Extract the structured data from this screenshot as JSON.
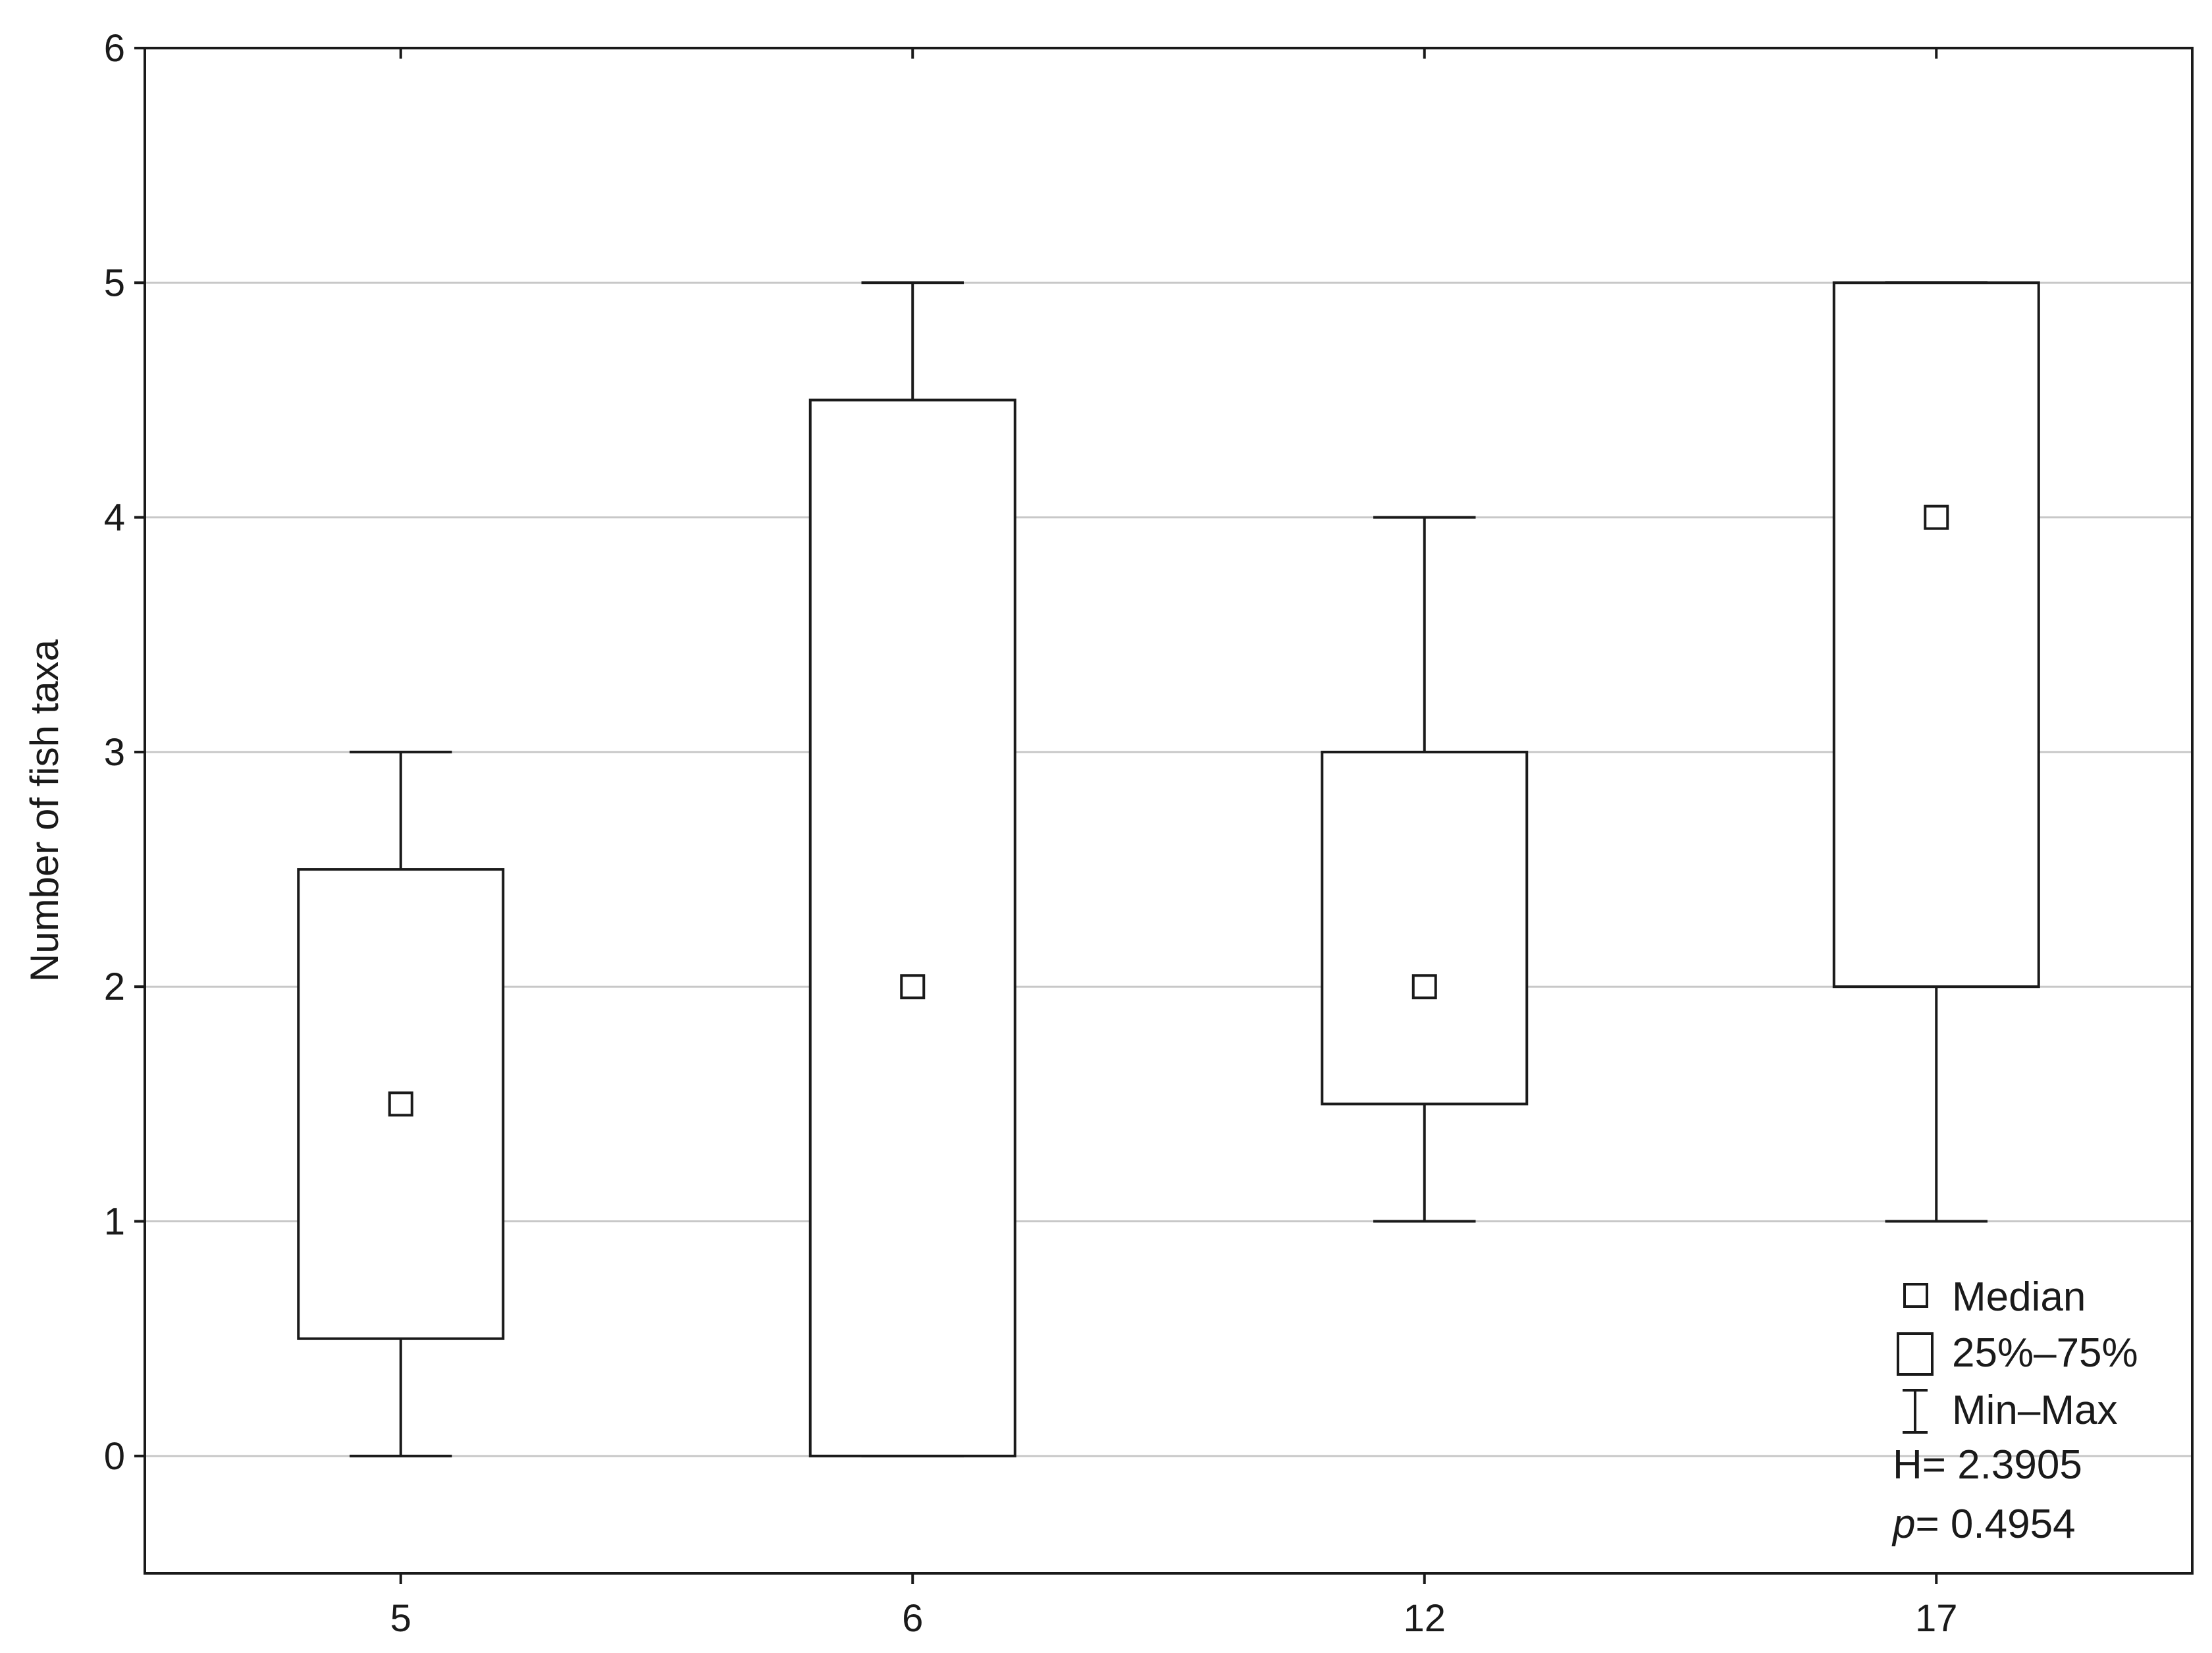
{
  "chart_data": {
    "type": "box",
    "ylabel": "Number of fish taxa",
    "xlabel": "",
    "ylim": [
      -0.5,
      6
    ],
    "yticks": [
      "0",
      "1",
      "2",
      "3",
      "4",
      "5",
      "6"
    ],
    "grid": "horizontal",
    "categories": [
      "5",
      "6",
      "12",
      "17"
    ],
    "boxes": [
      {
        "category": "5",
        "min": 0,
        "q1": 0.5,
        "median": 1.5,
        "q3": 2.5,
        "max": 3
      },
      {
        "category": "6",
        "min": 0,
        "q1": 0,
        "median": 2,
        "q3": 4.5,
        "max": 5
      },
      {
        "category": "12",
        "min": 1,
        "q1": 1.5,
        "median": 2,
        "q3": 3,
        "max": 4
      },
      {
        "category": "17",
        "min": 1,
        "q1": 2,
        "median": 4,
        "q3": 5,
        "max": 5
      }
    ],
    "legend": {
      "position": "bottom-right",
      "median_label": "Median",
      "box_label": "25%–75%",
      "whisker_label": "Min–Max",
      "h_stat": "H= 2.3905",
      "p_prefix": "p",
      "p_value": "= 0.4954"
    }
  }
}
